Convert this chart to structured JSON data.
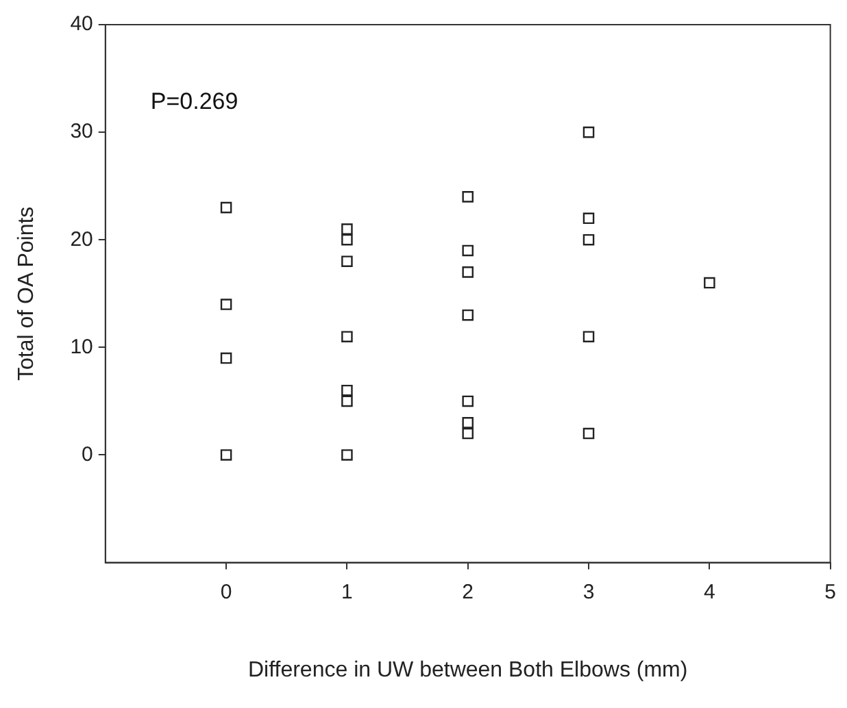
{
  "chart_data": {
    "type": "scatter",
    "xlabel": "Difference in UW between Both Elbows (mm)",
    "ylabel": "Total of OA Points",
    "x": [
      0,
      0,
      0,
      0,
      1,
      1,
      1,
      1,
      1,
      1,
      1,
      2,
      2,
      2,
      2,
      2,
      2,
      2,
      3,
      3,
      3,
      3,
      3,
      4
    ],
    "values": [
      23,
      14,
      9,
      0,
      21,
      20,
      18,
      11,
      6,
      5,
      0,
      24,
      19,
      17,
      13,
      5,
      3,
      2,
      30,
      22,
      20,
      11,
      2,
      16
    ],
    "color": "#222222",
    "marker": "square",
    "xlim": [
      -1,
      5
    ],
    "xticks": [
      0,
      1,
      2,
      3,
      4,
      5
    ],
    "ylim": [
      -10,
      40
    ],
    "yticks": [
      0,
      10,
      20,
      30,
      40
    ],
    "annotations": [
      "P=0.269"
    ]
  }
}
